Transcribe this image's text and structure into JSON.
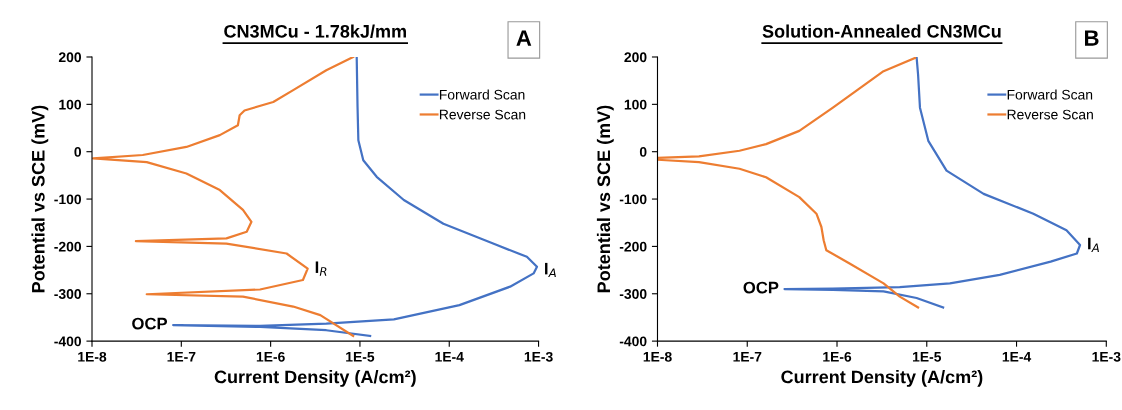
{
  "chart_data": [
    {
      "type": "line",
      "title": "CN3MCu - 1.78kJ/mm",
      "xlabel": "Current Density (A/cm²)",
      "ylabel": "Potential vs SCE (mV)",
      "log": "x",
      "legend": "top right",
      "grid": false,
      "xlim": [
        1e-08,
        0.001
      ],
      "xticks": [
        {
          "value": 1e-08,
          "label": "1E-8"
        },
        {
          "value": 1e-07,
          "label": "1E-7"
        },
        {
          "value": 1e-06,
          "label": "1E-6"
        },
        {
          "value": 1e-05,
          "label": "1E-5"
        },
        {
          "value": 0.0001,
          "label": "1E-4"
        },
        {
          "value": 0.001,
          "label": "1E-3"
        }
      ],
      "ylim": [
        -400,
        200
      ],
      "yticks": [
        -400,
        -300,
        -200,
        -100,
        0,
        100,
        200
      ],
      "annotations": [
        "A",
        {
          "text": "OCP",
          "x": 8.1e-08,
          "y": -366
        },
        {
          "text": "I$_{R}$",
          "x": 2.6e-06,
          "y": -247
        },
        {
          "text": "I$_{A}$",
          "x": 0.00096,
          "y": -250
        }
      ],
      "series": [
        {
          "name": "Forward Scan",
          "color": "#4472c4",
          "x": [
            1.3e-05,
            4.2e-06,
            7.6e-07,
            8.1e-08,
            7.6e-07,
            4.2e-06,
            2.4e-05,
            0.00013,
            0.00048,
            0.00088,
            0.00096,
            0.00074,
            0.00031,
            8.6e-05,
            3.1e-05,
            1.54e-05,
            1.09e-05,
            9.6e-06,
            9.4e-06,
            9.2e-06
          ],
          "values": [
            -389,
            -377,
            -370,
            -366,
            -368,
            -363,
            -354,
            -324,
            -285,
            -257,
            -243,
            -222,
            -194,
            -152,
            -102,
            -53,
            -18,
            24,
            95,
            200
          ]
        },
        {
          "name": "Reverse Scan",
          "color": "#ed7d31",
          "x": [
            8.4e-06,
            4.2e-06,
            1.79e-06,
            1.07e-06,
            5.1e-07,
            4.5e-07,
            4.3e-07,
            2.7e-07,
            1.14e-07,
            3.7e-08,
            1.03e-08,
            4.1e-08,
            1.14e-07,
            2.7e-07,
            4.9e-07,
            6.1e-07,
            5.4e-07,
            3.2e-07,
            3.1e-08,
            3.2e-07,
            1.51e-06,
            2.6e-06,
            2.3e-06,
            7.6e-07,
            4.1e-08,
            4.9e-07,
            1.79e-06,
            3.6e-06,
            8.4e-06
          ],
          "values": [
            200,
            172,
            130,
            105,
            87,
            77,
            56,
            35,
            10,
            -7,
            -14,
            -22,
            -46,
            -81,
            -123,
            -148,
            -169,
            -183,
            -189,
            -194,
            -215,
            -247,
            -271,
            -291,
            -301,
            -306,
            -327,
            -345,
            -389
          ]
        }
      ]
    },
    {
      "type": "line",
      "title": "Solution-Annealed CN3MCu",
      "xlabel": "Current Density (A/cm²)",
      "ylabel": "Potential vs SCE (mV)",
      "log": "x",
      "legend": "top right",
      "grid": false,
      "xlim": [
        1e-08,
        0.001
      ],
      "xticks": [
        {
          "value": 1e-08,
          "label": "1E-8"
        },
        {
          "value": 1e-07,
          "label": "1E-7"
        },
        {
          "value": 1e-06,
          "label": "1E-6"
        },
        {
          "value": 1e-05,
          "label": "1E-5"
        },
        {
          "value": 0.0001,
          "label": "1E-4"
        },
        {
          "value": 0.001,
          "label": "1E-3"
        }
      ],
      "ylim": [
        -400,
        200
      ],
      "yticks": [
        -400,
        -300,
        -200,
        -100,
        0,
        100,
        200
      ],
      "annotations": [
        "B",
        {
          "text": "OCP",
          "x": 2.6e-07,
          "y": -290
        },
        {
          "text": "I$_{A}$",
          "x": 0.00051,
          "y": -197
        }
      ],
      "series": [
        {
          "name": "Forward Scan",
          "color": "#4472c4",
          "x": [
            1.52e-05,
            7.7e-06,
            3.3e-06,
            9e-07,
            2.6e-07,
            9e-07,
            5e-06,
            1.81e-05,
            6.5e-05,
            0.00024,
            0.00047,
            0.00051,
            0.00036,
            0.000154,
            4.3e-05,
            1.66e-05,
            1.04e-05,
            8.4e-06,
            8e-06,
            7.7e-06
          ],
          "values": [
            -329,
            -309,
            -295,
            -292,
            -290,
            -289,
            -286,
            -278,
            -260,
            -232,
            -215,
            -197,
            -166,
            -131,
            -89,
            -40,
            23,
            93,
            163,
            200
          ]
        },
        {
          "name": "Reverse Scan",
          "color": "#ed7d31",
          "x": [
            7.4e-06,
            3.3e-06,
            9e-07,
            3.8e-07,
            1.62e-07,
            8.2e-08,
            2.9e-08,
            1e-08,
            1e-08,
            2.9e-08,
            8.2e-08,
            1.62e-07,
            3.8e-07,
            5.9e-07,
            6.7e-07,
            7.1e-07,
            7.6e-07,
            1.38e-06,
            3.3e-06,
            5e-06,
            8e-06
          ],
          "values": [
            198,
            170,
            93,
            44,
            16,
            2,
            -10,
            -13,
            -17,
            -22,
            -36,
            -54,
            -96,
            -131,
            -159,
            -187,
            -208,
            -236,
            -278,
            -306,
            -329
          ]
        }
      ]
    }
  ]
}
